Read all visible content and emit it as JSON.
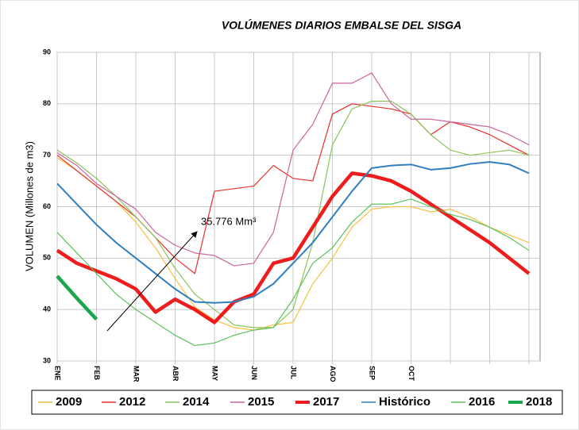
{
  "chart_data": {
    "type": "line",
    "title": "VOLÚMENES DIARIOS EMBALSE DEL SISGA",
    "y_label": "VOLUMEN (Millones de m3)",
    "annotation": "35.776 Mm³",
    "categories": [
      "ENE",
      null,
      "FEB",
      null,
      "MAR",
      null,
      "ABR",
      null,
      "MAY",
      null,
      "JUN",
      null,
      "JUL",
      null,
      "AGO",
      null,
      "SEP",
      null,
      "OCT",
      null,
      null,
      null,
      null,
      null,
      null
    ],
    "ylim": [
      30,
      90
    ],
    "yticks": [
      30,
      40,
      50,
      60,
      70,
      80,
      90
    ],
    "grid": true,
    "series": [
      {
        "name": "2009",
        "color": "#f5c242",
        "values": [
          69.5,
          67,
          64,
          61,
          57,
          52,
          46,
          40.5,
          38,
          36.5,
          36,
          37,
          37.5,
          45,
          50,
          56,
          59.5,
          60,
          60,
          59,
          59.5,
          58,
          56,
          54.5,
          53
        ]
      },
      {
        "name": "2012",
        "color": "#e8312a",
        "values": [
          70,
          67,
          64,
          61,
          58,
          54,
          50,
          47,
          63,
          63.5,
          64,
          68,
          65.5,
          65,
          78,
          80,
          79.5,
          79,
          78,
          74,
          76.5,
          75.5,
          74,
          72,
          70
        ]
      },
      {
        "name": "2014",
        "color": "#8cc45a",
        "values": [
          71,
          68.5,
          65.5,
          62,
          58,
          54,
          48,
          43,
          40,
          37,
          36.5,
          36.5,
          40,
          53,
          72,
          79,
          80.5,
          80.5,
          78,
          74,
          71,
          70,
          70.5,
          71,
          70
        ]
      },
      {
        "name": "2015",
        "color": "#c9669e",
        "values": [
          70.5,
          68,
          64.5,
          62,
          59.5,
          55,
          52.5,
          51,
          50.5,
          48.5,
          49,
          55,
          71,
          76,
          84,
          84,
          86,
          80,
          77,
          77,
          76.5,
          76,
          75.5,
          74,
          72
        ]
      },
      {
        "name": "2017",
        "color": "#ee1c1c",
        "values": [
          51.5,
          49,
          47.5,
          46,
          44,
          39.5,
          42,
          40,
          37.5,
          41.5,
          43,
          49,
          50,
          56,
          62,
          66.5,
          66,
          65,
          63,
          60.5,
          58,
          55.5,
          53,
          50,
          47
        ]
      },
      {
        "name": "Histórico",
        "color": "#2f7fc1",
        "values": [
          64.5,
          60.5,
          56.5,
          53,
          50,
          47,
          44,
          41.5,
          41.3,
          41.5,
          42.5,
          45,
          49,
          53,
          58,
          63,
          67.5,
          68,
          68.2,
          67.2,
          67.5,
          68.3,
          68.7,
          68.2,
          66.5
        ]
      },
      {
        "name": "2016",
        "color": "#5cc25c",
        "values": [
          55,
          51,
          47,
          43,
          40,
          37.5,
          35,
          33,
          33.5,
          35,
          36,
          36.5,
          42,
          49,
          52,
          57,
          60.5,
          60.5,
          61.5,
          60,
          58.5,
          57.5,
          56,
          54,
          51.5
        ]
      },
      {
        "name": "2018",
        "color": "#1aa64a",
        "values": [
          46.5,
          42.2,
          38.1,
          null,
          null,
          null,
          null,
          null,
          null,
          null,
          null,
          null,
          null,
          null,
          null,
          null,
          null,
          null,
          null,
          null,
          null,
          null,
          null,
          null,
          null
        ]
      }
    ]
  }
}
